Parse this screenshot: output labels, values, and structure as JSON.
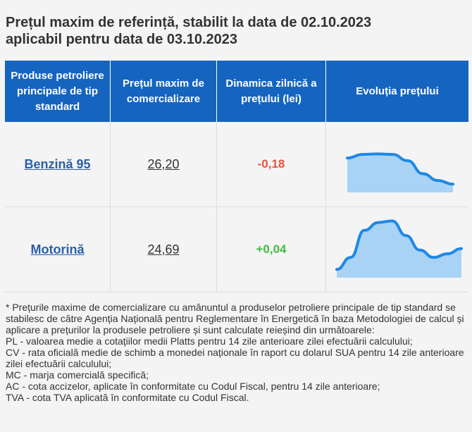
{
  "title_line1": "Prețul maxim de referință, stabilit la data de 02.10.2023",
  "title_line2": "aplicabil pentru data de 03.10.2023",
  "headers": {
    "product": "Produse petroliere principale de tip standard",
    "price": "Prețul maxim de comercializare",
    "dynamics": "Dinamica zilnică a prețului (lei)",
    "evolution": "Evoluția prețului"
  },
  "rows": [
    {
      "product": "Benzină 95",
      "price": "26,20",
      "dynamics": "-0,18",
      "trend": [
        0.55,
        0.62,
        0.63,
        0.62,
        0.5,
        0.25,
        0.12,
        0.05
      ]
    },
    {
      "product": "Motorină",
      "price": "24,69",
      "dynamics": "+0,04",
      "trend": [
        0.05,
        0.28,
        0.8,
        0.95,
        0.98,
        0.7,
        0.42,
        0.28,
        0.35,
        0.45
      ]
    }
  ],
  "notes": [
    "* Prețurile maxime de comercializare cu amănuntul a produselor petroliere principale de tip standard se stabilesc de către Agenția Națională pentru Reglementare în Energetică în baza Metodologiei de calcul și aplicare a prețurilor la produsele petroliere și sunt calculate reieșind din următoarele:",
    "PL - valoarea medie a cotațiilor medii Platts pentru 14 zile anterioare zilei efectuării calculului;",
    "CV - rata oficială medie de schimb a monedei naționale în raport cu dolarul SUA pentru 14 zile anterioare zilei efectuării calculului;",
    "MC - marja comercială specifică;",
    "AC - cota accizelor, aplicate în conformitate cu Codul Fiscal, pentru 14 zile anterioare;",
    "TVA - cota TVA aplicată în conformitate cu Codul Fiscal."
  ],
  "colors": {
    "header_bg": "#1565c0",
    "link": "#2a5fa8",
    "negative": "#e8533d",
    "positive": "#3fbf3f",
    "spark_line": "#1e88e5",
    "spark_fill": "#a9d3f5"
  }
}
